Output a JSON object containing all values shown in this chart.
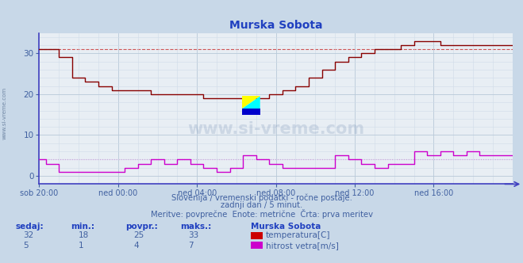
{
  "title": "Murska Sobota",
  "bg_color": "#c8d8e8",
  "plot_bg_color": "#e8eef4",
  "grid_color_major": "#b8c8d8",
  "grid_color_minor": "#d0dce8",
  "xlim": [
    0,
    24
  ],
  "ylim": [
    -2,
    35
  ],
  "yticks": [
    0,
    10,
    20,
    30
  ],
  "xtick_labels": [
    "sob 20:00",
    "ned 00:00",
    "ned 04:00",
    "ned 08:00",
    "ned 12:00",
    "ned 16:00"
  ],
  "xtick_positions": [
    0,
    4,
    8,
    12,
    16,
    20
  ],
  "temp_color": "#880000",
  "wind_color": "#cc00cc",
  "dashed_color_temp": "#cc4444",
  "dashed_color_wind": "#cc44cc",
  "axis_color": "#4040c0",
  "title_color": "#2040c0",
  "label_color": "#4060a0",
  "watermark_color": "#2060a0",
  "legend_title_color": "#2040c0",
  "legend_value_color": "#4060a0",
  "temp_data_x": [
    0,
    0.33,
    0.33,
    1.0,
    1.0,
    1.67,
    1.67,
    2.33,
    2.33,
    3.0,
    3.0,
    3.67,
    3.67,
    4.33,
    4.33,
    5.0,
    5.0,
    5.67,
    5.67,
    6.33,
    6.33,
    7.0,
    7.0,
    7.67,
    7.67,
    8.33,
    8.33,
    9.0,
    9.0,
    9.67,
    9.67,
    10.33,
    10.33,
    11.0,
    11.0,
    11.67,
    11.67,
    12.33,
    12.33,
    13.0,
    13.0,
    13.67,
    13.67,
    14.33,
    14.33,
    15.0,
    15.0,
    15.67,
    15.67,
    16.33,
    16.33,
    17.0,
    17.0,
    17.67,
    17.67,
    18.33,
    18.33,
    19.0,
    19.0,
    19.67,
    19.67,
    20.33,
    20.33,
    21.0,
    21.0,
    21.67,
    21.67,
    22.33,
    22.33,
    23.0,
    23.0,
    24.0
  ],
  "temp_data_y": [
    31,
    31,
    31,
    31,
    29,
    29,
    24,
    24,
    23,
    23,
    22,
    22,
    21,
    21,
    21,
    21,
    21,
    21,
    20,
    20,
    20,
    20,
    20,
    20,
    20,
    20,
    19,
    19,
    19,
    19,
    19,
    19,
    19,
    19,
    19,
    19,
    20,
    20,
    21,
    21,
    22,
    22,
    24,
    24,
    26,
    26,
    28,
    28,
    29,
    29,
    30,
    30,
    31,
    31,
    31,
    31,
    32,
    32,
    33,
    33,
    33,
    33,
    32,
    32,
    32,
    32,
    32,
    32,
    32,
    32,
    32,
    32
  ],
  "wind_data_x": [
    0,
    0.33,
    0.33,
    1.0,
    1.0,
    1.67,
    1.67,
    2.33,
    2.33,
    3.0,
    3.0,
    3.67,
    3.67,
    4.33,
    4.33,
    5.0,
    5.0,
    5.67,
    5.67,
    6.33,
    6.33,
    7.0,
    7.0,
    7.67,
    7.67,
    8.33,
    8.33,
    9.0,
    9.0,
    9.67,
    9.67,
    10.33,
    10.33,
    11.0,
    11.0,
    11.67,
    11.67,
    12.33,
    12.33,
    13.0,
    13.0,
    13.67,
    13.67,
    14.33,
    14.33,
    15.0,
    15.0,
    15.67,
    15.67,
    16.33,
    16.33,
    17.0,
    17.0,
    17.67,
    17.67,
    18.33,
    18.33,
    19.0,
    19.0,
    19.67,
    19.67,
    20.33,
    20.33,
    21.0,
    21.0,
    21.67,
    21.67,
    22.33,
    22.33,
    23.0,
    23.0,
    24.0
  ],
  "wind_data_y": [
    4,
    4,
    3,
    3,
    1,
    1,
    1,
    1,
    1,
    1,
    1,
    1,
    1,
    1,
    2,
    2,
    3,
    3,
    4,
    4,
    3,
    3,
    4,
    4,
    3,
    3,
    2,
    2,
    1,
    1,
    2,
    2,
    5,
    5,
    4,
    4,
    3,
    3,
    2,
    2,
    2,
    2,
    2,
    2,
    2,
    2,
    5,
    5,
    4,
    4,
    3,
    3,
    2,
    2,
    3,
    3,
    3,
    3,
    6,
    6,
    5,
    5,
    6,
    6,
    5,
    5,
    6,
    6,
    5,
    5,
    5,
    5
  ],
  "temp_dashed_y": 31,
  "wind_dashed_y": 4,
  "temp_min": 18,
  "temp_max": 33,
  "temp_avg": 25,
  "temp_now": 32,
  "wind_min": 1,
  "wind_max": 7,
  "wind_avg": 4,
  "wind_now": 5,
  "subtitle1": "Slovenija / vremenski podatki - ročne postaje.",
  "subtitle2": "zadnji dan / 5 minut.",
  "subtitle3": "Meritve: povprečne  Enote: metrične  Črta: prva meritev",
  "legend_title": "Murska Sobota",
  "legend_temp_label": "temperatura[C]",
  "legend_wind_label": "hitrost vetra[m/s]",
  "col_sedaj": "sedaj:",
  "col_min": "min.:",
  "col_povpr": "povpr.:",
  "col_maks": "maks.:"
}
